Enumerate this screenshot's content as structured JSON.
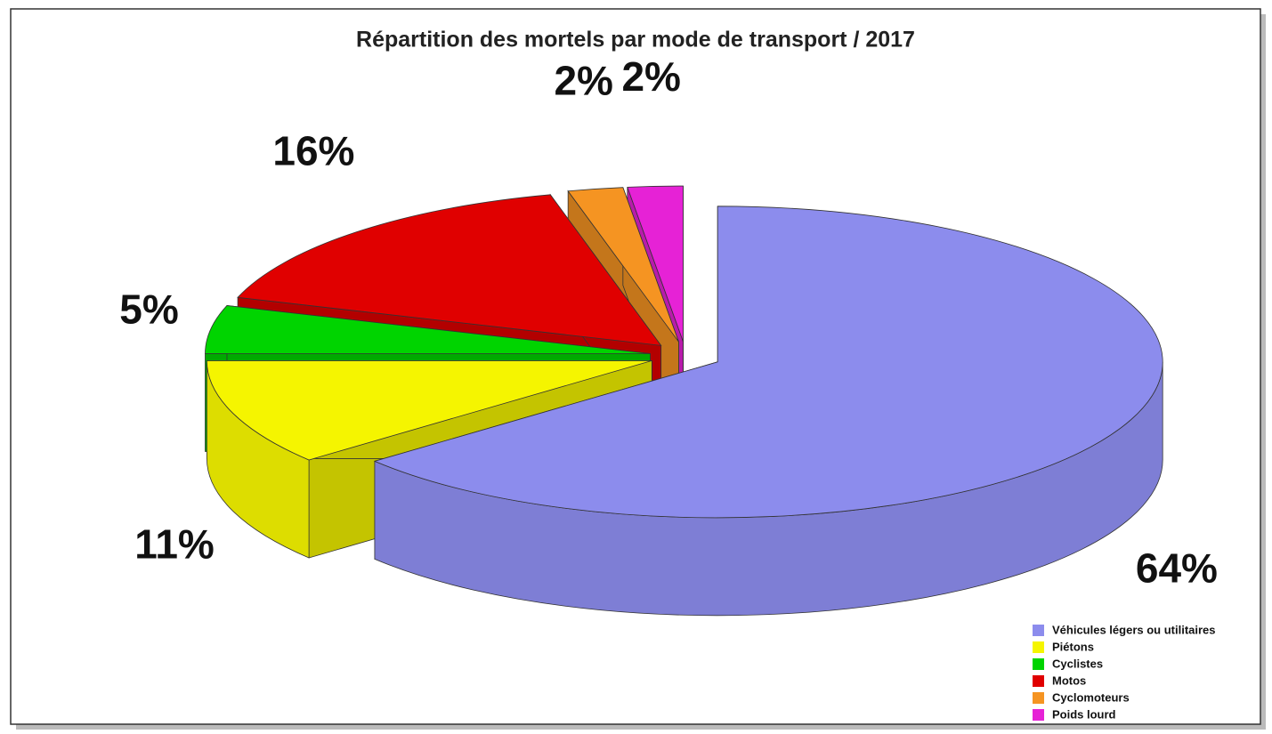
{
  "chart_data": {
    "type": "pie",
    "title": "Répartition des mortels par mode de transport / 2017",
    "categories": [
      "Véhicules légers ou utilitaires",
      "Piétons",
      "Cyclistes",
      "Motos",
      "Cyclomoteurs",
      "Poids lourd"
    ],
    "values": [
      64,
      11,
      5,
      16,
      2,
      2
    ],
    "value_labels": [
      "64%",
      "11%",
      "5%",
      "16%",
      "2%",
      "2%"
    ],
    "colors": [
      "#8c8ced",
      "#f5f500",
      "#00d400",
      "#e00000",
      "#f59422",
      "#e622d6"
    ],
    "legend": "bottom-right"
  }
}
